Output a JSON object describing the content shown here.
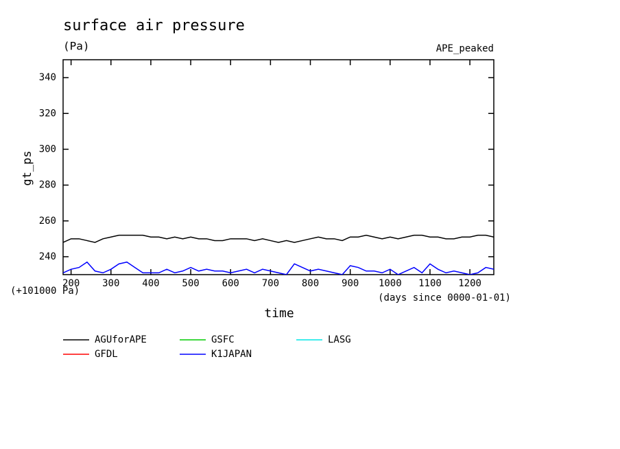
{
  "chart_data": {
    "type": "line",
    "title": "surface air pressure",
    "subtitle": "(Pa)",
    "annotation": "APE_peaked",
    "x_label": "time",
    "x_unit_label": "(days since 0000-01-01)",
    "y_label": "gt_ps",
    "y_offset_label": "(+101000 Pa)",
    "x": [
      180,
      200,
      220,
      240,
      260,
      280,
      300,
      320,
      340,
      360,
      380,
      400,
      420,
      440,
      460,
      480,
      500,
      520,
      540,
      560,
      580,
      600,
      620,
      640,
      660,
      680,
      700,
      720,
      740,
      760,
      780,
      800,
      820,
      840,
      860,
      880,
      900,
      920,
      940,
      960,
      980,
      1000,
      1020,
      1040,
      1060,
      1080,
      1100,
      1120,
      1140,
      1160,
      1180,
      1200,
      1220,
      1240,
      1260
    ],
    "series": [
      {
        "name": "AGUforAPE",
        "color": "#000000",
        "values": [
          248,
          250,
          250,
          249,
          248,
          250,
          251,
          252,
          252,
          252,
          252,
          251,
          251,
          250,
          251,
          250,
          251,
          250,
          250,
          249,
          249,
          250,
          250,
          250,
          249,
          250,
          249,
          248,
          249,
          248,
          249,
          250,
          251,
          250,
          250,
          249,
          251,
          251,
          252,
          251,
          250,
          251,
          250,
          251,
          252,
          252,
          251,
          251,
          250,
          250,
          251,
          251,
          252,
          252,
          251
        ]
      },
      {
        "name": "GFDL",
        "color": "#ff0000",
        "values": [
          null,
          null,
          null,
          null,
          null,
          null,
          null,
          null,
          null,
          null,
          null,
          null,
          null,
          null,
          null,
          null,
          null,
          null,
          null,
          null,
          null,
          null,
          null,
          null,
          null,
          null,
          null,
          null,
          null,
          null,
          null,
          null,
          null,
          null,
          null,
          null,
          null,
          null,
          null,
          null,
          null,
          null,
          null,
          null,
          null,
          null,
          null,
          null,
          null,
          null,
          null,
          null,
          null,
          null,
          null
        ]
      },
      {
        "name": "GSFC",
        "color": "#00cc00",
        "values": [
          null,
          null,
          null,
          null,
          null,
          null,
          null,
          null,
          null,
          null,
          null,
          null,
          null,
          null,
          null,
          null,
          null,
          null,
          null,
          null,
          null,
          null,
          null,
          null,
          null,
          null,
          null,
          null,
          null,
          null,
          null,
          null,
          null,
          null,
          null,
          null,
          null,
          null,
          null,
          null,
          null,
          null,
          null,
          null,
          null,
          null,
          null,
          null,
          null,
          null,
          null,
          null,
          null,
          null,
          null
        ]
      },
      {
        "name": "K1JAPAN",
        "color": "#0000ff",
        "values": [
          231,
          233,
          234,
          237,
          232,
          231,
          233,
          236,
          237,
          234,
          231,
          231,
          231,
          233,
          231,
          232,
          234,
          232,
          233,
          232,
          232,
          231,
          232,
          233,
          231,
          233,
          232,
          231,
          230,
          236,
          234,
          232,
          233,
          232,
          231,
          230,
          235,
          234,
          232,
          232,
          231,
          233,
          230,
          232,
          234,
          231,
          236,
          233,
          231,
          232,
          231,
          230,
          231,
          234,
          233
        ]
      },
      {
        "name": "LASG",
        "color": "#00e5e5",
        "values": [
          null,
          null,
          null,
          null,
          null,
          null,
          null,
          null,
          null,
          null,
          null,
          null,
          null,
          null,
          null,
          null,
          null,
          null,
          null,
          null,
          null,
          null,
          null,
          null,
          null,
          null,
          null,
          null,
          null,
          null,
          null,
          null,
          null,
          null,
          null,
          null,
          null,
          null,
          null,
          null,
          null,
          null,
          null,
          null,
          null,
          null,
          null,
          null,
          null,
          null,
          null,
          null,
          null,
          null,
          null
        ]
      }
    ],
    "xlim": [
      180,
      1260
    ],
    "ylim": [
      230,
      350
    ],
    "xticks": [
      200,
      300,
      400,
      500,
      600,
      700,
      800,
      900,
      1000,
      1100,
      1200
    ],
    "yticks": [
      240,
      260,
      280,
      300,
      320,
      340
    ]
  }
}
